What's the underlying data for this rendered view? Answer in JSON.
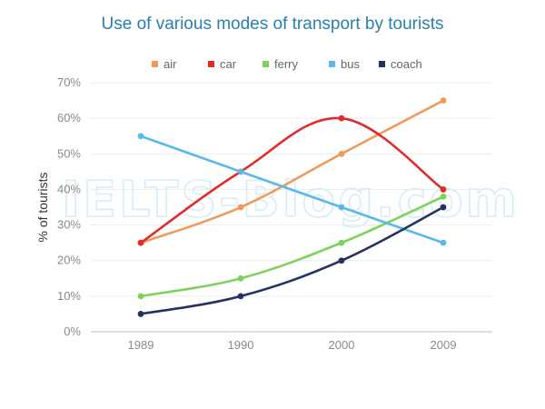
{
  "chart_data": {
    "type": "line",
    "title": "Use of various modes of transport by tourists",
    "xlabel": "",
    "ylabel": "% of tourists",
    "categories": [
      "1989",
      "1990",
      "2000",
      "2009"
    ],
    "ylim": [
      0,
      70
    ],
    "yticks": [
      "0%",
      "10%",
      "20%",
      "30%",
      "40%",
      "50%",
      "60%",
      "70%"
    ],
    "grid": true,
    "legend_position": "top",
    "watermark": "IELTS-Blog.com",
    "series": [
      {
        "name": "air",
        "color": "#f09a5a",
        "values": [
          25,
          35,
          50,
          65
        ]
      },
      {
        "name": "car",
        "color": "#e02b2b",
        "values": [
          25,
          45,
          60,
          40
        ]
      },
      {
        "name": "ferry",
        "color": "#7dd35a",
        "values": [
          10,
          15,
          25,
          38
        ]
      },
      {
        "name": "bus",
        "color": "#5ab9ea",
        "values": [
          55,
          45,
          35,
          25
        ]
      },
      {
        "name": "coach",
        "color": "#263163",
        "values": [
          5,
          10,
          20,
          35
        ]
      }
    ]
  }
}
